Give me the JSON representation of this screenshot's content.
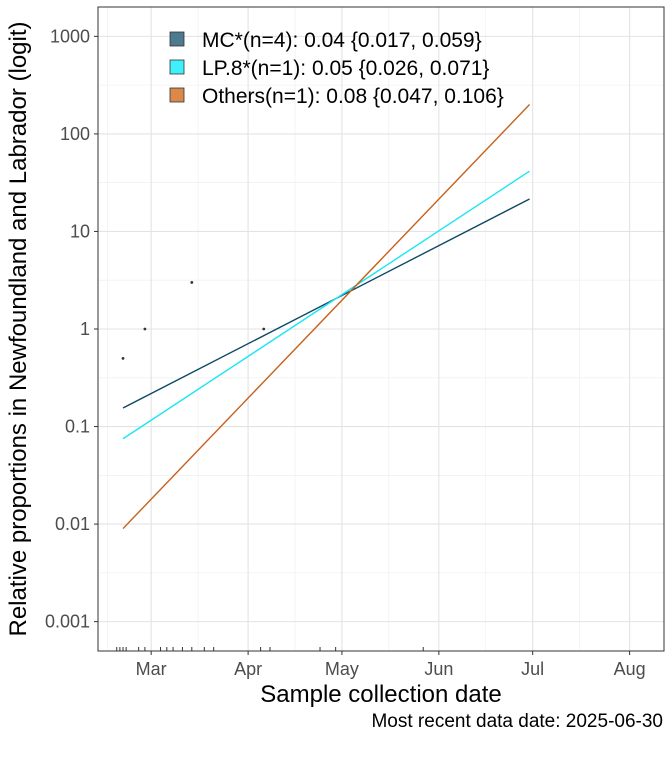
{
  "chart_data": {
    "type": "line",
    "xlabel": "Sample collection date",
    "ylabel": "Relative proportions in Newfoundland and Labrador (logit)",
    "y_scale": "log",
    "ylim": [
      0.0005,
      2000
    ],
    "xlim": [
      "2025-02-12",
      "2025-08-12"
    ],
    "grid": true,
    "legend_position": "top-left",
    "x_ticks": [
      {
        "date": "2025-03-01",
        "label": "Mar"
      },
      {
        "date": "2025-04-01",
        "label": "Apr"
      },
      {
        "date": "2025-05-01",
        "label": "May"
      },
      {
        "date": "2025-06-01",
        "label": "Jun"
      },
      {
        "date": "2025-07-01",
        "label": "Jul"
      },
      {
        "date": "2025-08-01",
        "label": "Aug"
      }
    ],
    "y_ticks": [
      {
        "value": 0.001,
        "label": "0.001"
      },
      {
        "value": 0.01,
        "label": "0.01"
      },
      {
        "value": 0.1,
        "label": "0.1"
      },
      {
        "value": 1,
        "label": "1"
      },
      {
        "value": 10,
        "label": "10"
      },
      {
        "value": 100,
        "label": "100"
      },
      {
        "value": 1000,
        "label": "1000"
      }
    ],
    "series": [
      {
        "name": "MC*(n=4): 0.04 {0.017, 0.059}",
        "color": "#0d4a66",
        "legend_fill": "#4d7a8f",
        "line": [
          {
            "x": "2025-02-20",
            "y": 0.155
          },
          {
            "x": "2025-06-30",
            "y": 21.5
          }
        ]
      },
      {
        "name": "LP.8*(n=1): 0.05 {0.026, 0.071}",
        "color": "#1ae5f5",
        "legend_fill": "#3ff0fa",
        "line": [
          {
            "x": "2025-02-20",
            "y": 0.075
          },
          {
            "x": "2025-06-30",
            "y": 41.5
          }
        ]
      },
      {
        "name": "Others(n=1): 0.08 {0.047, 0.106}",
        "color": "#c8601a",
        "legend_fill": "#dc8848",
        "line": [
          {
            "x": "2025-02-20",
            "y": 0.009
          },
          {
            "x": "2025-06-30",
            "y": 200
          }
        ]
      }
    ],
    "points": [
      {
        "x": "2025-02-20",
        "y": 0.5
      },
      {
        "x": "2025-02-27",
        "y": 1
      },
      {
        "x": "2025-03-14",
        "y": 3
      },
      {
        "x": "2025-04-06",
        "y": 1
      }
    ],
    "rug_dates": [
      "2025-02-18",
      "2025-02-19",
      "2025-02-20",
      "2025-02-21",
      "2025-02-25",
      "2025-02-27",
      "2025-03-04",
      "2025-03-06",
      "2025-03-08",
      "2025-03-11",
      "2025-03-14",
      "2025-03-18",
      "2025-03-21",
      "2025-04-05",
      "2025-04-08",
      "2025-04-24",
      "2025-04-29",
      "2025-05-27"
    ]
  },
  "caption": "Most recent data date: 2025-06-30"
}
